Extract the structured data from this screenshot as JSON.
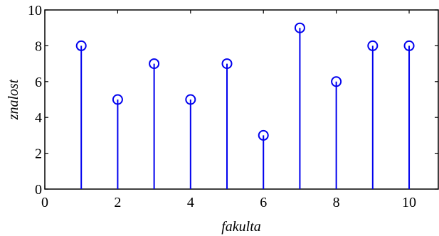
{
  "chart_data": {
    "type": "stem",
    "x": [
      1,
      2,
      3,
      4,
      5,
      6,
      7,
      8,
      9,
      10
    ],
    "series": [
      {
        "values": [
          8,
          5,
          7,
          5,
          7,
          3,
          9,
          6,
          8,
          8
        ]
      }
    ],
    "xlabel": "fakulta",
    "ylabel": "znalost",
    "xlim": [
      0,
      10.8
    ],
    "ylim": [
      0,
      10
    ],
    "xticks": [
      "0",
      "2",
      "4",
      "6",
      "8",
      "10"
    ],
    "yticks": [
      "0",
      "2",
      "4",
      "6",
      "8",
      "10"
    ],
    "grid": false,
    "color": "#0000ee"
  }
}
